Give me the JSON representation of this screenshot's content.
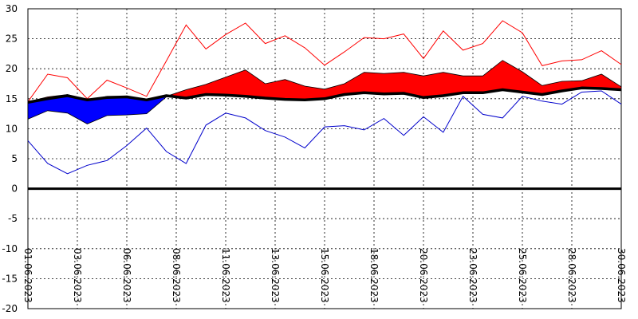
{
  "chart_data": {
    "type": "line",
    "title": "",
    "xlabel": "",
    "ylabel": "",
    "ylim": [
      -20,
      30
    ],
    "y_ticks": [
      30,
      25,
      20,
      15,
      10,
      5,
      0,
      -5,
      -10,
      -15,
      -20
    ],
    "x_tick_labels": [
      "01.06.2023",
      "03.06.2023",
      "06.06.2023",
      "08.06.2023",
      "11.06.2023",
      "13.06.2023",
      "15.06.2023",
      "18.06.2023",
      "20.06.2023",
      "23.06.2023",
      "25.06.2023",
      "28.06.2023",
      "30.06.2023"
    ],
    "x_tick_days": [
      1,
      3.5,
      6,
      8.5,
      11,
      13.5,
      16,
      18.5,
      21,
      23.5,
      26,
      28.5,
      31
    ],
    "grid": true,
    "x": [
      1,
      2,
      3,
      4,
      5,
      6,
      7,
      8,
      9,
      10,
      11,
      12,
      13,
      14,
      15,
      16,
      17,
      18,
      19,
      20,
      21,
      22,
      23,
      24,
      25,
      26,
      27,
      28,
      29,
      30,
      31
    ],
    "series": [
      {
        "color": "#ff0000",
        "values": [
          14.5,
          19.1,
          18.5,
          15.0,
          18.1,
          16.8,
          15.4,
          21.3,
          27.3,
          23.3,
          25.7,
          27.6,
          24.2,
          25.5,
          23.5,
          20.6,
          22.8,
          25.2,
          25.0,
          25.8,
          21.7,
          26.3,
          23.1,
          24.2,
          28.0,
          26.0,
          20.5,
          21.3,
          21.5,
          23.0,
          20.7
        ]
      },
      {
        "color": "#0000cc",
        "values": [
          8.0,
          4.2,
          2.5,
          3.9,
          4.7,
          7.2,
          10.1,
          6.2,
          4.2,
          10.6,
          12.6,
          11.8,
          9.7,
          8.6,
          6.8,
          10.3,
          10.5,
          9.8,
          11.7,
          8.9,
          12.0,
          9.4,
          15.4,
          12.4,
          11.8,
          15.4,
          14.6,
          14.1,
          16.1,
          16.3,
          14.1
        ]
      },
      {
        "color": "#000000",
        "values": [
          14.4,
          15.0,
          15.5,
          14.8,
          15.2,
          15.3,
          14.8,
          15.5,
          15.1,
          15.7,
          15.6,
          15.4,
          15.1,
          14.9,
          14.8,
          15.0,
          15.7,
          16.0,
          15.8,
          15.9,
          15.2,
          15.5,
          16.0,
          16.0,
          16.5,
          16.1,
          15.7,
          16.3,
          16.8,
          16.7,
          16.5
        ]
      },
      {
        "color": "#ff0000",
        "values": [
          14.5,
          15.3,
          15.7,
          14.8,
          15.4,
          15.4,
          14.9,
          15.4,
          16.5,
          17.4,
          18.6,
          19.8,
          17.5,
          18.2,
          17.1,
          16.6,
          17.5,
          19.4,
          19.2,
          19.4,
          18.8,
          19.4,
          18.8,
          18.8,
          21.4,
          19.5,
          17.2,
          17.9,
          18.0,
          19.1,
          17.0
        ]
      },
      {
        "color": "#0000ff",
        "values": [
          11.6,
          13.0,
          12.6,
          10.8,
          12.2,
          12.3,
          12.5,
          15.3,
          15.3,
          15.8,
          15.6,
          15.4,
          15.1,
          14.9,
          14.8,
          15.0,
          15.7,
          16.0,
          15.8,
          15.9,
          15.2,
          15.5,
          16.0,
          16.0,
          16.5,
          16.1,
          15.7,
          16.3,
          16.8,
          16.7,
          16.5
        ]
      }
    ]
  }
}
